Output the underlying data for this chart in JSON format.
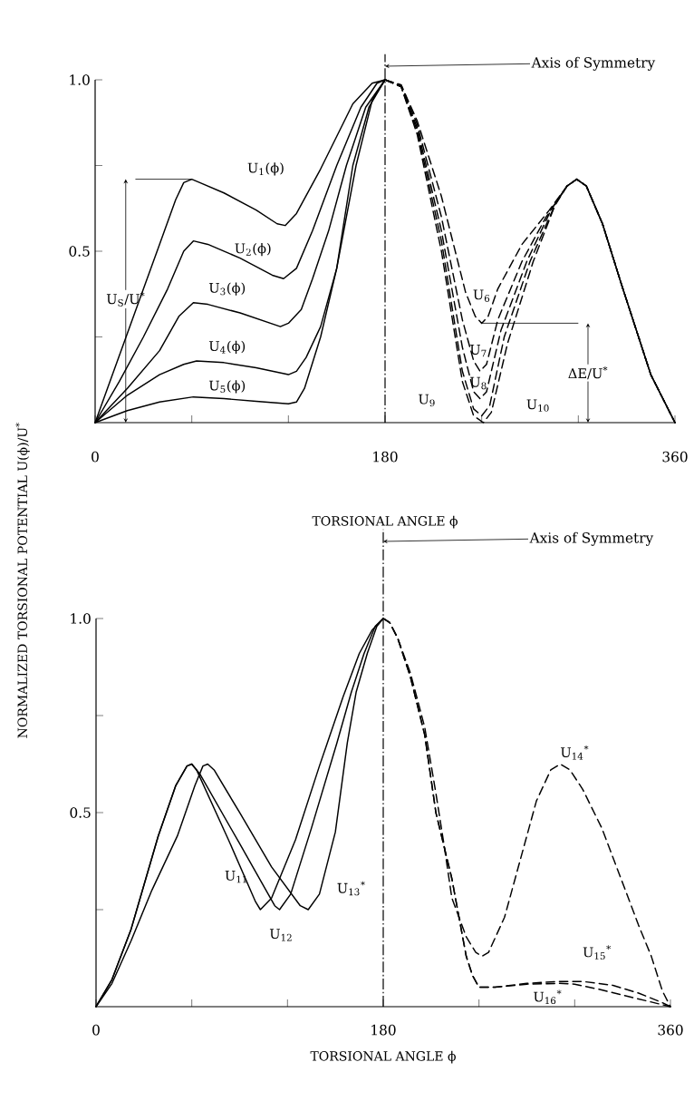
{
  "chart_data": [
    {
      "type": "line",
      "xlabel": "TORSIONAL ANGLE ϕ",
      "ylabel": "NORMALIZED TORSIONAL POTENTIAL U(ϕ)/U$^{*}$",
      "xlim": [
        0,
        360
      ],
      "ylim": [
        0,
        1
      ],
      "xticks": [
        0,
        {
          "value": 60,
          "label": null
        },
        {
          "value": 120,
          "label": null
        },
        180,
        {
          "value": 240,
          "label": null
        },
        {
          "value": 300,
          "label": null
        },
        360
      ],
      "yticks": [
        {
          "value": 0.25,
          "label": null
        },
        0.5,
        {
          "value": 0.75,
          "label": null
        },
        {
          "value": 1,
          "label": "1.0"
        }
      ],
      "series": [
        {
          "name": "U$_{1}$(ϕ)",
          "color": "#000000",
          "line_style": "solid",
          "x": [
            0,
            10,
            20,
            30,
            40,
            50,
            55,
            60,
            65,
            80,
            100,
            113,
            118,
            125,
            140,
            160,
            172,
            180
          ],
          "values": [
            0,
            0.13,
            0.26,
            0.39,
            0.52,
            0.65,
            0.7,
            0.71,
            0.7,
            0.67,
            0.62,
            0.58,
            0.575,
            0.61,
            0.74,
            0.93,
            0.99,
            1.0
          ]
        },
        {
          "name": "U$_{2}$(ϕ)",
          "color": "#000000",
          "line_style": "solid",
          "x": [
            0,
            15,
            30,
            45,
            55,
            61,
            70,
            90,
            110,
            117,
            125,
            135,
            150,
            165,
            175,
            180
          ],
          "values": [
            0,
            0.12,
            0.25,
            0.39,
            0.5,
            0.53,
            0.52,
            0.48,
            0.43,
            0.42,
            0.45,
            0.56,
            0.75,
            0.92,
            0.99,
            1.0
          ]
        },
        {
          "name": "U$_{3}$(ϕ)",
          "color": "#000000",
          "line_style": "solid",
          "x": [
            0,
            20,
            40,
            52,
            61,
            70,
            90,
            115,
            120,
            128,
            135,
            145,
            156,
            168,
            180
          ],
          "values": [
            0,
            0.1,
            0.21,
            0.31,
            0.35,
            0.345,
            0.32,
            0.28,
            0.29,
            0.33,
            0.42,
            0.56,
            0.75,
            0.92,
            1.0
          ]
        },
        {
          "name": "U$_{4}$(ϕ)",
          "color": "#000000",
          "line_style": "solid",
          "x": [
            0,
            20,
            40,
            55,
            63,
            80,
            100,
            120,
            125,
            131,
            140,
            150,
            160,
            170,
            180
          ],
          "values": [
            0,
            0.08,
            0.14,
            0.17,
            0.18,
            0.175,
            0.16,
            0.14,
            0.15,
            0.19,
            0.28,
            0.45,
            0.75,
            0.92,
            1.0
          ]
        },
        {
          "name": "U$_{5}$(ϕ)",
          "color": "#000000",
          "line_style": "solid",
          "x": [
            0,
            20,
            40,
            61,
            80,
            100,
            120,
            125,
            130,
            140,
            150,
            162,
            172,
            180
          ],
          "values": [
            0,
            0.035,
            0.06,
            0.075,
            0.07,
            0.062,
            0.055,
            0.06,
            0.1,
            0.25,
            0.45,
            0.75,
            0.94,
            1.0
          ]
        },
        {
          "name": "U$_{6}$",
          "color": "#000000",
          "line_style": "dashed",
          "x": [
            180,
            190,
            200,
            215,
            230,
            236,
            240,
            244,
            250,
            265,
            282,
            293,
            299,
            305,
            315,
            327,
            345,
            360
          ],
          "values": [
            1.0,
            0.985,
            0.88,
            0.66,
            0.38,
            0.31,
            0.29,
            0.31,
            0.39,
            0.52,
            0.62,
            0.69,
            0.71,
            0.69,
            0.58,
            0.4,
            0.14,
            0
          ]
        },
        {
          "name": "U$_{7}$",
          "color": "#000000",
          "line_style": "dashed",
          "x": [
            180,
            190,
            200,
            215,
            228,
            235,
            239,
            243,
            250,
            265,
            280,
            293,
            299,
            305,
            315,
            327,
            345,
            360
          ],
          "values": [
            1.0,
            0.985,
            0.87,
            0.6,
            0.3,
            0.18,
            0.15,
            0.17,
            0.3,
            0.47,
            0.6,
            0.69,
            0.71,
            0.69,
            0.58,
            0.4,
            0.14,
            0
          ]
        },
        {
          "name": "U$_{8}$",
          "color": "#000000",
          "line_style": "dashed",
          "x": [
            180,
            190,
            200,
            215,
            228,
            235,
            239,
            243,
            252,
            268,
            283,
            293,
            299,
            305,
            315,
            327,
            345,
            360
          ],
          "values": [
            1.0,
            0.98,
            0.86,
            0.56,
            0.22,
            0.09,
            0.07,
            0.09,
            0.27,
            0.47,
            0.62,
            0.69,
            0.71,
            0.69,
            0.58,
            0.4,
            0.14,
            0
          ]
        },
        {
          "name": "U$_{9}$",
          "color": "#000000",
          "line_style": "dashed",
          "x": [
            180,
            190,
            200,
            215,
            228,
            235,
            240,
            245,
            254,
            270,
            285,
            293,
            299,
            305,
            315,
            327,
            345,
            360
          ],
          "values": [
            1.0,
            0.98,
            0.85,
            0.53,
            0.15,
            0.04,
            0.02,
            0.05,
            0.25,
            0.47,
            0.63,
            0.69,
            0.71,
            0.69,
            0.58,
            0.4,
            0.14,
            0
          ]
        },
        {
          "name": "U$_{10}$",
          "color": "#000000",
          "line_style": "dashed",
          "x": [
            180,
            190,
            200,
            215,
            228,
            235,
            241,
            246,
            256,
            272,
            286,
            293,
            299,
            305,
            315,
            327,
            345,
            360
          ],
          "values": [
            1.0,
            0.98,
            0.84,
            0.5,
            0.12,
            0.02,
            0,
            0.03,
            0.23,
            0.47,
            0.64,
            0.69,
            0.71,
            0.69,
            0.58,
            0.4,
            0.14,
            0
          ]
        }
      ],
      "annotations": [
        "U$_{S}$/U$^{*}$",
        "ΔE/U$^{*}$"
      ],
      "ref_lines": [
        {
          "axis": "x",
          "value": 180,
          "label": "Axis of Symmetry",
          "line_style": "dashdotted"
        }
      ]
    },
    {
      "type": "line",
      "xlabel": "TORSIONAL ANGLE ϕ",
      "xlim": [
        0,
        360
      ],
      "ylim": [
        0,
        1
      ],
      "xticks": [
        0,
        {
          "value": 60,
          "label": null
        },
        {
          "value": 120,
          "label": null
        },
        180,
        {
          "value": 240,
          "label": null
        },
        {
          "value": 300,
          "label": null
        },
        360
      ],
      "yticks": [
        {
          "value": 0.25,
          "label": null
        },
        0.5,
        {
          "value": 0.75,
          "label": null
        },
        {
          "value": 1,
          "label": "1.0"
        }
      ],
      "series": [
        {
          "name": "U$_{11}$",
          "color": "#000000",
          "line_style": "solid",
          "x": [
            0,
            10,
            22,
            39,
            50,
            57,
            60,
            63,
            83,
            100,
            103,
            110,
            125,
            140,
            145,
            155,
            165,
            173,
            180
          ],
          "values": [
            0,
            0.07,
            0.2,
            0.44,
            0.57,
            0.62,
            0.625,
            0.61,
            0.43,
            0.27,
            0.25,
            0.28,
            0.43,
            0.62,
            0.68,
            0.8,
            0.91,
            0.97,
            1.0
          ]
        },
        {
          "name": "U$_{12}$",
          "color": "#000000",
          "line_style": "solid",
          "x": [
            0,
            10,
            22,
            39,
            50,
            57,
            60,
            65,
            90,
            112,
            115,
            122,
            135,
            151,
            160,
            168,
            175,
            180
          ],
          "values": [
            0,
            0.07,
            0.2,
            0.44,
            0.57,
            0.62,
            0.625,
            0.6,
            0.42,
            0.26,
            0.25,
            0.29,
            0.46,
            0.68,
            0.81,
            0.91,
            0.98,
            1.0
          ]
        },
        {
          "name": "U$_{13}$$^{*}$",
          "color": "#000000",
          "line_style": "solid",
          "x": [
            0,
            10,
            22,
            35,
            51,
            62,
            67,
            70,
            74,
            90,
            110,
            128,
            133,
            140,
            150,
            157.5,
            163,
            170,
            176,
            180
          ],
          "values": [
            0,
            0.06,
            0.17,
            0.3,
            0.44,
            0.57,
            0.62,
            0.625,
            0.61,
            0.5,
            0.36,
            0.26,
            0.25,
            0.29,
            0.45,
            0.68,
            0.81,
            0.91,
            0.98,
            1.0
          ]
        },
        {
          "name": "U$_{14}$$^{*}$",
          "color": "#000000",
          "line_style": "dashed",
          "x": [
            180,
            184,
            189,
            197,
            206,
            213,
            218,
            223,
            232,
            238,
            242,
            246,
            256,
            266,
            276,
            285,
            291,
            297,
            305,
            317,
            329,
            340,
            348,
            355,
            360
          ],
          "values": [
            1.0,
            0.99,
            0.95,
            0.86,
            0.72,
            0.55,
            0.42,
            0.28,
            0.18,
            0.14,
            0.13,
            0.14,
            0.23,
            0.38,
            0.53,
            0.61,
            0.625,
            0.61,
            0.56,
            0.46,
            0.33,
            0.21,
            0.13,
            0.04,
            0
          ]
        },
        {
          "name": "U$_{15}$$^{*}$",
          "color": "#000000",
          "line_style": "dashed",
          "x": [
            180,
            184,
            189,
            197,
            206,
            213,
            223,
            232,
            236,
            240,
            250,
            270,
            290,
            305,
            324,
            340,
            355,
            360
          ],
          "values": [
            1.0,
            0.99,
            0.95,
            0.85,
            0.7,
            0.5,
            0.33,
            0.13,
            0.08,
            0.05,
            0.05,
            0.06,
            0.065,
            0.065,
            0.055,
            0.035,
            0.01,
            0
          ]
        },
        {
          "name": "U$_{16}$$^{*}$",
          "color": "#000000",
          "line_style": "dashed",
          "x": [
            180,
            184,
            189,
            197,
            206,
            213,
            223,
            232,
            236,
            240,
            250,
            270,
            290,
            300,
            315,
            330,
            345,
            360
          ],
          "values": [
            1.0,
            0.99,
            0.95,
            0.85,
            0.7,
            0.5,
            0.33,
            0.13,
            0.08,
            0.05,
            0.05,
            0.058,
            0.06,
            0.058,
            0.045,
            0.03,
            0.015,
            0
          ]
        }
      ],
      "ref_lines": [
        {
          "axis": "x",
          "value": 180,
          "label": "Axis of Symmetry",
          "line_style": "dashdotted"
        }
      ]
    }
  ]
}
